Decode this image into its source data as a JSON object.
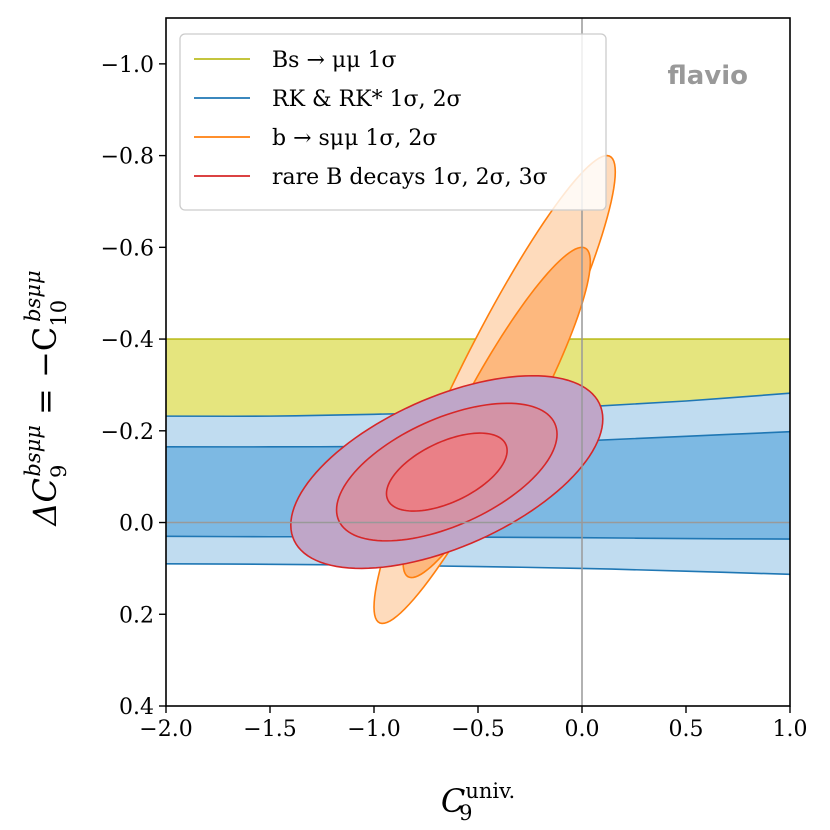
{
  "chart_data": {
    "type": "area",
    "title": "",
    "xlabel": "C9 univ.",
    "xlabel_base": "C",
    "xlabel_sub": "9",
    "xlabel_sup": "univ.",
    "ylabel": "ΔC9 bsμμ = −C10 bsμμ",
    "ylabel_parts": {
      "delta_c": "ΔC",
      "sub1": "9",
      "sup1": "bsμμ",
      "equals": " = −C",
      "sub2": "10",
      "sup2": "bsμμ"
    },
    "xlim": [
      -2.0,
      1.0
    ],
    "ylim": [
      0.4,
      -1.1
    ],
    "y_inverted": true,
    "xticks": [
      "−2.0",
      "−1.5",
      "−1.0",
      "−0.5",
      "0.0",
      "0.5",
      "1.0"
    ],
    "xtick_values": [
      -2.0,
      -1.5,
      -1.0,
      -0.5,
      0.0,
      0.5,
      1.0
    ],
    "yticks": [
      "−1.0",
      "−0.8",
      "−0.6",
      "−0.4",
      "−0.2",
      "0.0",
      "0.2",
      "0.4"
    ],
    "ytick_values": [
      -1.0,
      -0.8,
      -0.6,
      -0.4,
      -0.2,
      0.0,
      0.2,
      0.4
    ],
    "grid": false,
    "reference_lines": {
      "x": 0.0,
      "y": 0.0,
      "color": "#999999"
    },
    "legend_placement": "top-left",
    "legend": [
      {
        "label": "Bs → μμ 1σ",
        "color": "#bcbd22"
      },
      {
        "label": "RK & RK* 1σ, 2σ",
        "color": "#1f77b4"
      },
      {
        "label": "b → sμμ 1σ, 2σ",
        "color": "#ff7f0e"
      },
      {
        "label": "rare B decays 1σ, 2σ, 3σ",
        "color": "#d62728"
      }
    ],
    "series": [
      {
        "name": "Bs → μμ 1σ",
        "kind": "band",
        "color": "#bcbd22",
        "fill": "#e5e57e",
        "x": [
          -2.0,
          1.0
        ],
        "y_lower": [
          -0.4,
          -0.4
        ],
        "y_upper": [
          -0.025,
          -0.025
        ]
      },
      {
        "name": "RK & RK* 2σ",
        "kind": "band",
        "color": "#1f77b4",
        "fill": "#c0dcf0",
        "x": [
          -2.0,
          -1.5,
          -1.0,
          -0.5,
          0.0,
          0.5,
          1.0
        ],
        "y_lower": [
          -0.232,
          -0.232,
          -0.236,
          -0.242,
          -0.252,
          -0.265,
          -0.282
        ],
        "y_upper": [
          0.09,
          0.091,
          0.093,
          0.096,
          0.1,
          0.106,
          0.113
        ]
      },
      {
        "name": "RK & RK* 1σ",
        "kind": "band",
        "color": "#1f77b4",
        "fill": "#7db9e3",
        "x": [
          -2.0,
          -1.5,
          -1.0,
          -0.5,
          0.0,
          0.5,
          1.0
        ],
        "y_lower": [
          -0.165,
          -0.165,
          -0.166,
          -0.17,
          -0.178,
          -0.188,
          -0.198
        ],
        "y_upper": [
          0.03,
          0.031,
          0.031,
          0.032,
          0.033,
          0.035,
          0.036
        ]
      },
      {
        "name": "b → sμμ 2σ",
        "kind": "ellipse",
        "color": "#ff7f0e",
        "fill": "#fedbbc",
        "center": [
          -0.42,
          -0.29
        ],
        "half_widths_xy": [
          0.58,
          0.51
        ],
        "correlation": -0.93
      },
      {
        "name": "b → sμμ 1σ",
        "kind": "ellipse",
        "color": "#ff7f0e",
        "fill": "#fdb87e",
        "center": [
          -0.41,
          -0.24
        ],
        "half_widths_xy": [
          0.45,
          0.36
        ],
        "correlation": -0.91
      },
      {
        "name": "rare B decays 3σ",
        "kind": "ellipse",
        "color": "#d62728",
        "fill": "#bfa6c8",
        "center": [
          -0.65,
          -0.11
        ],
        "half_widths_xy": [
          0.75,
          0.21
        ],
        "correlation": -0.55
      },
      {
        "name": "rare B decays 2σ",
        "kind": "ellipse",
        "color": "#d62728",
        "fill": "#d393a6",
        "center": [
          -0.65,
          -0.11
        ],
        "half_widths_xy": [
          0.53,
          0.15
        ],
        "correlation": -0.55
      },
      {
        "name": "rare B decays 1σ",
        "kind": "ellipse",
        "color": "#d62728",
        "fill": "#ea8087",
        "center": [
          -0.65,
          -0.11
        ],
        "half_widths_xy": [
          0.29,
          0.085
        ],
        "correlation": -0.55
      }
    ],
    "annotations": [
      {
        "text": "flavio",
        "placement": "top-right",
        "color": "#999999"
      }
    ]
  }
}
